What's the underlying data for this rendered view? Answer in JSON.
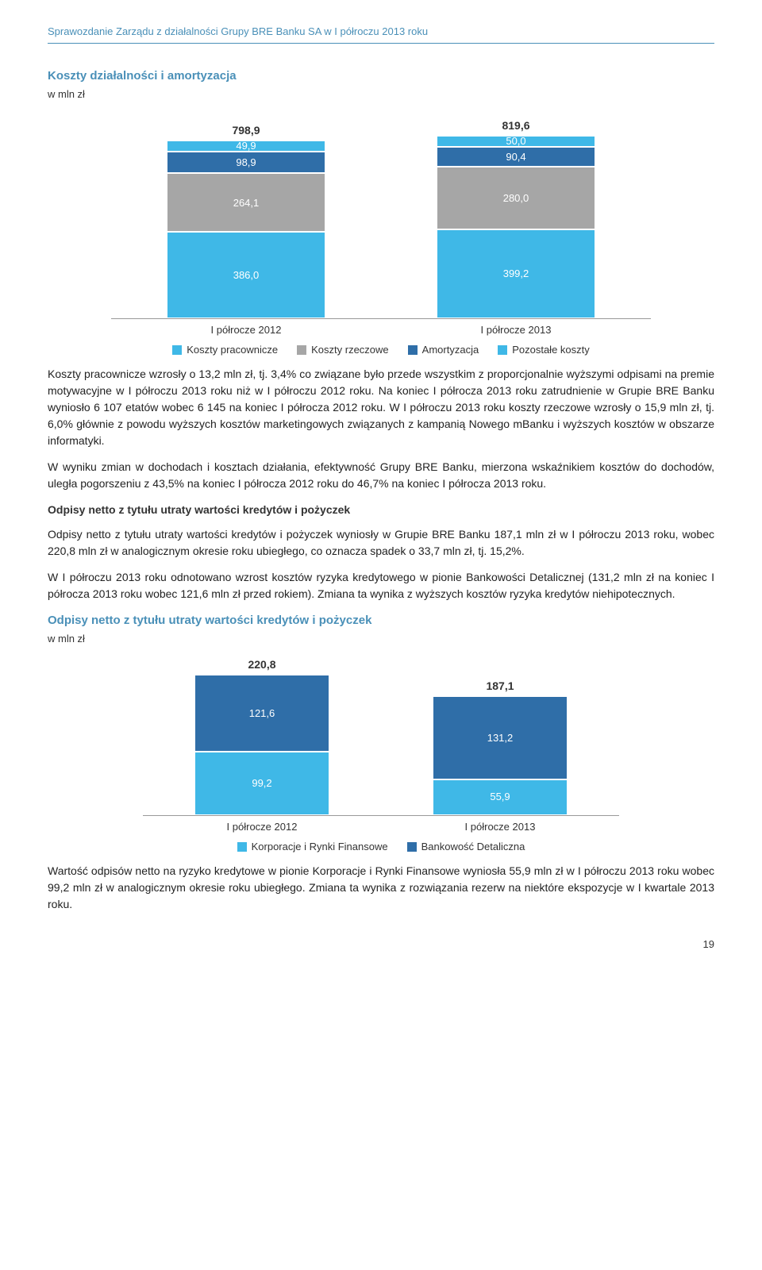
{
  "header": "Sprawozdanie Zarządu z działalności Grupy BRE Banku SA w I półroczu 2013 roku",
  "chart1": {
    "title": "Koszty działalności i amortyzacja",
    "subtitle": "w mln zł",
    "type": "stacked-bar",
    "scale": 0.28,
    "categories": [
      "I półrocze 2012",
      "I półrocze 2013"
    ],
    "totals": [
      "798,9",
      "819,6"
    ],
    "segments": [
      [
        {
          "label": "49,9",
          "value": 49.9,
          "color": "#3fb8e7"
        },
        {
          "label": "98,9",
          "value": 98.9,
          "color": "#2f6ea8"
        },
        {
          "label": "264,1",
          "value": 264.1,
          "color": "#a6a6a6"
        },
        {
          "label": "386,0",
          "value": 386.0,
          "color": "#3fb8e7"
        }
      ],
      [
        {
          "label": "50,0",
          "value": 50.0,
          "color": "#3fb8e7"
        },
        {
          "label": "90,4",
          "value": 90.4,
          "color": "#2f6ea8"
        },
        {
          "label": "280,0",
          "value": 280.0,
          "color": "#a6a6a6"
        },
        {
          "label": "399,2",
          "value": 399.2,
          "color": "#3fb8e7"
        }
      ]
    ],
    "legend": [
      {
        "label": "Koszty pracownicze",
        "color": "#3fb8e7"
      },
      {
        "label": "Koszty rzeczowe",
        "color": "#a6a6a6"
      },
      {
        "label": "Amortyzacja",
        "color": "#2f6ea8"
      },
      {
        "label": "Pozostałe koszty",
        "color": "#3fb8e7"
      }
    ],
    "background_color": "#ffffff"
  },
  "para1": "Koszty pracownicze wzrosły o 13,2 mln zł, tj. 3,4% co związane było przede wszystkim z proporcjonalnie wyższymi odpisami na premie motywacyjne w I półroczu 2013 roku niż w I półroczu 2012 roku. Na koniec I półrocza 2013 roku zatrudnienie w Grupie BRE Banku wyniosło 6 107 etatów wobec 6 145 na koniec I półrocza 2012 roku. W I półroczu 2013 roku koszty rzeczowe wzrosły o 15,9 mln zł, tj. 6,0% głównie z powodu wyższych kosztów marketingowych związanych z kampanią Nowego mBanku i wyższych kosztów w obszarze informatyki.",
  "para2": "W wyniku zmian w dochodach i kosztach działania, efektywność Grupy BRE Banku, mierzona wskaźnikiem kosztów do dochodów, uległa pogorszeniu z 43,5% na koniec I półrocza 2012 roku do 46,7% na koniec I półrocza 2013 roku.",
  "subhead1": "Odpisy netto z tytułu utraty wartości kredytów i pożyczek",
  "para3": "Odpisy netto z tytułu utraty wartości kredytów i pożyczek wyniosły w Grupie BRE Banku 187,1 mln zł w I półroczu 2013 roku, wobec 220,8 mln zł w analogicznym okresie roku ubiegłego, co oznacza spadek o 33,7 mln zł, tj. 15,2%.",
  "para4": "W I półroczu 2013 roku odnotowano wzrost kosztów ryzyka kredytowego w pionie Bankowości Detalicznej (131,2 mln zł na koniec I półrocza 2013 roku wobec 121,6 mln zł przed rokiem). Zmiana ta wynika z wyższych kosztów ryzyka kredytów niehipotecznych.",
  "chart2": {
    "title": "Odpisy netto z tytułu utraty wartości kredytów i pożyczek",
    "subtitle": "w mln zł",
    "type": "stacked-bar",
    "scale": 0.8,
    "categories": [
      "I półrocze 2012",
      "I półrocze 2013"
    ],
    "totals": [
      "220,8",
      "187,1"
    ],
    "segments": [
      [
        {
          "label": "121,6",
          "value": 121.6,
          "color": "#2f6ea8"
        },
        {
          "label": "99,2",
          "value": 99.2,
          "color": "#3fb8e7"
        }
      ],
      [
        {
          "label": "131,2",
          "value": 131.2,
          "color": "#2f6ea8"
        },
        {
          "label": "55,9",
          "value": 55.9,
          "color": "#3fb8e7"
        }
      ]
    ],
    "legend": [
      {
        "label": "Korporacje i Rynki Finansowe",
        "color": "#3fb8e7"
      },
      {
        "label": "Bankowość Detaliczna",
        "color": "#2f6ea8"
      }
    ],
    "background_color": "#ffffff"
  },
  "para5": "Wartość odpisów netto na ryzyko kredytowe w pionie Korporacje i Rynki Finansowe wyniosła 55,9 mln zł w I półroczu 2013 roku wobec 99,2 mln zł w analogicznym okresie roku ubiegłego. Zmiana ta wynika z rozwiązania rezerw na niektóre ekspozycje w I kwartale 2013 roku.",
  "page_number": "19"
}
